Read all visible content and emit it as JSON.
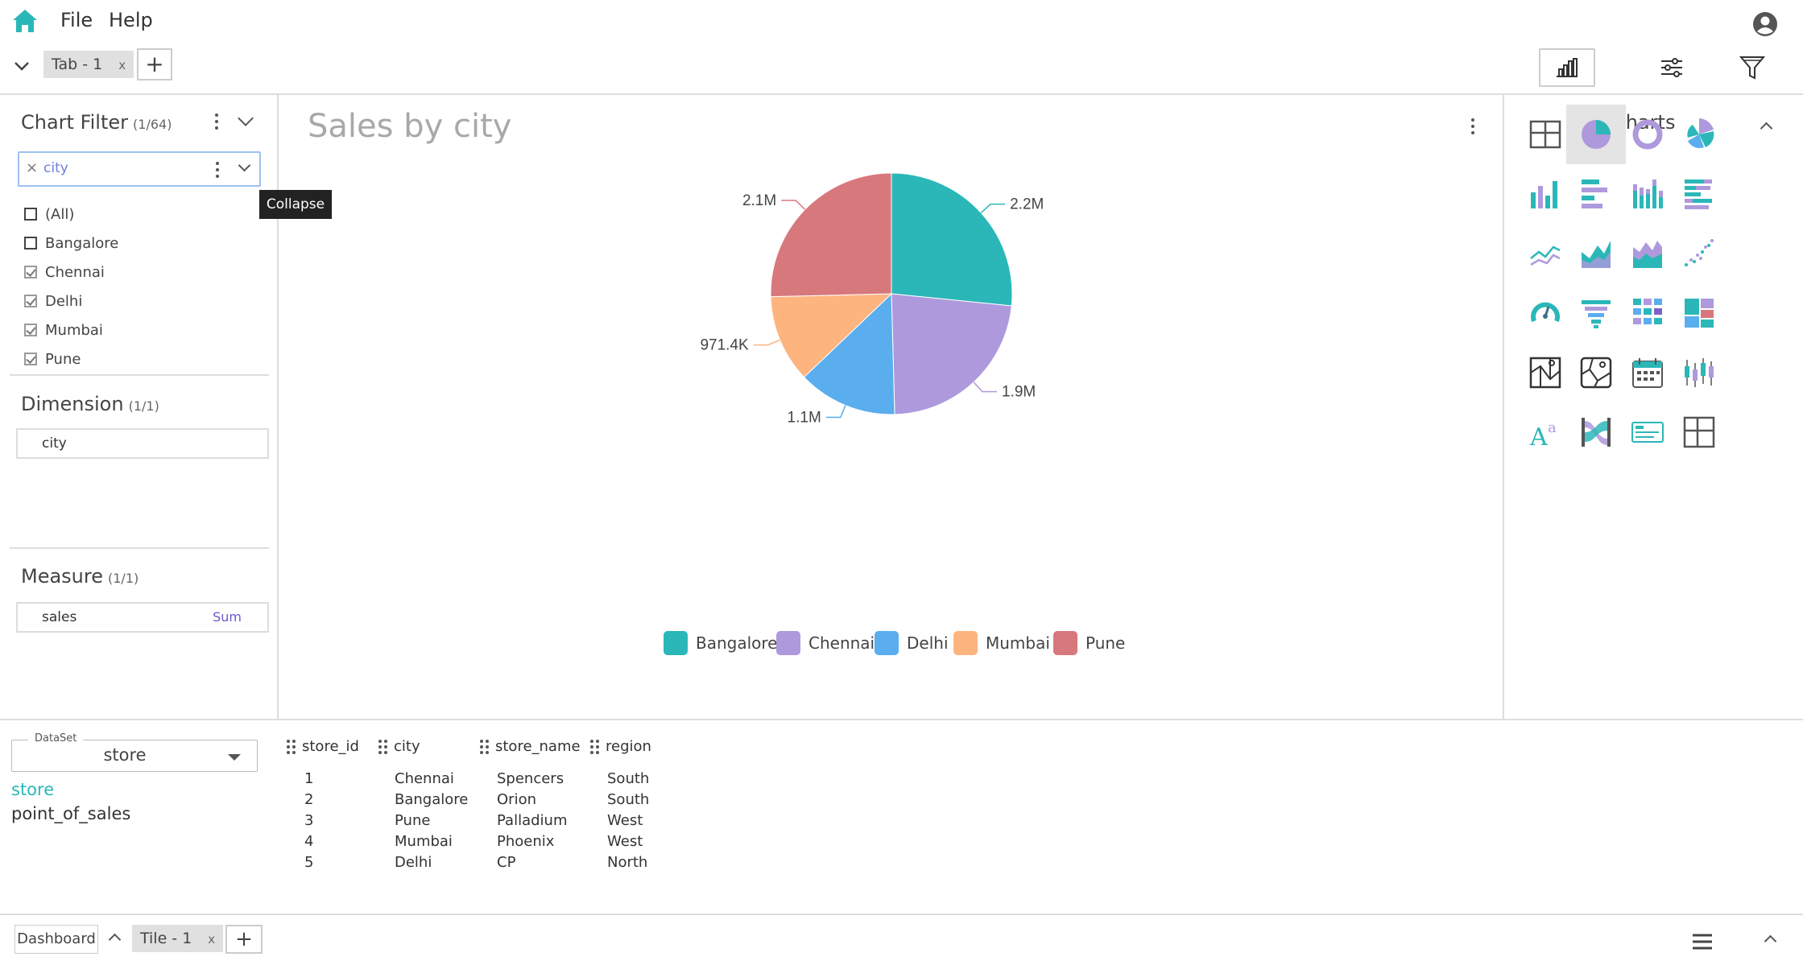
{
  "menu": {
    "file": "File",
    "help": "Help"
  },
  "tabs": [
    {
      "label": "Tab - 1",
      "close": "x"
    }
  ],
  "add_tab": "+",
  "filter": {
    "title": "Chart Filter",
    "count": "(1/64)",
    "field": "city",
    "clear": "×",
    "items": [
      {
        "label": "(All)",
        "checked": false
      },
      {
        "label": "Bangalore",
        "checked": false
      },
      {
        "label": "Chennai",
        "checked": true
      },
      {
        "label": "Delhi",
        "checked": true
      },
      {
        "label": "Mumbai",
        "checked": true
      },
      {
        "label": "Pune",
        "checked": true
      }
    ]
  },
  "tooltip": "Collapse",
  "dimension": {
    "title": "Dimension",
    "count": "(1/1)",
    "field": "city"
  },
  "measure": {
    "title": "Measure",
    "count": "(1/1)",
    "field": "sales",
    "agg": "Sum"
  },
  "chart_data": {
    "type": "pie",
    "title": "Sales by city",
    "categories": [
      "Bangalore",
      "Chennai",
      "Delhi",
      "Mumbai",
      "Pune"
    ],
    "values": [
      2200000,
      1900000,
      1100000,
      971400,
      2100000
    ],
    "labels": [
      "2.2M",
      "1.9M",
      "1.1M",
      "971.4K",
      "2.1M"
    ],
    "colors": [
      "#2bb7b8",
      "#ae99dc",
      "#5aaeee",
      "#feb47f",
      "#d7787d"
    ],
    "legend": "bottom"
  },
  "charts_panel": {
    "title": "Charts",
    "icons": [
      "table-icon",
      "pie-chart-icon",
      "donut-chart-icon",
      "rose-chart-icon",
      "bar-chart-icon",
      "horizontal-bar-icon",
      "stacked-bar-icon",
      "stacked-horizontal-bar-icon",
      "line-chart-icon",
      "area-chart-icon",
      "stacked-area-icon",
      "scatter-chart-icon",
      "gauge-icon",
      "funnel-icon",
      "heatmap-icon",
      "treemap-icon",
      "geo-map-icon",
      "geo-map-2-icon",
      "calendar-icon",
      "candlestick-icon",
      "rich-text-icon",
      "sankey-icon",
      "filter-control-icon",
      "pivot-table-icon"
    ]
  },
  "dataset": {
    "legend": "DataSet",
    "value": "store",
    "tables": [
      "store",
      "point_of_sales"
    ],
    "columns": [
      "store_id",
      "city",
      "store_name",
      "region"
    ],
    "rows": [
      [
        "1",
        "Chennai",
        "Spencers",
        "South"
      ],
      [
        "2",
        "Bangalore",
        "Orion",
        "South"
      ],
      [
        "3",
        "Pune",
        "Palladium",
        "West"
      ],
      [
        "4",
        "Mumbai",
        "Phoenix",
        "West"
      ],
      [
        "5",
        "Delhi",
        "CP",
        "North"
      ]
    ]
  },
  "footer": {
    "dashboard": "Dashboard",
    "tile": "Tile - 1",
    "tile_close": "x",
    "add": "+"
  }
}
